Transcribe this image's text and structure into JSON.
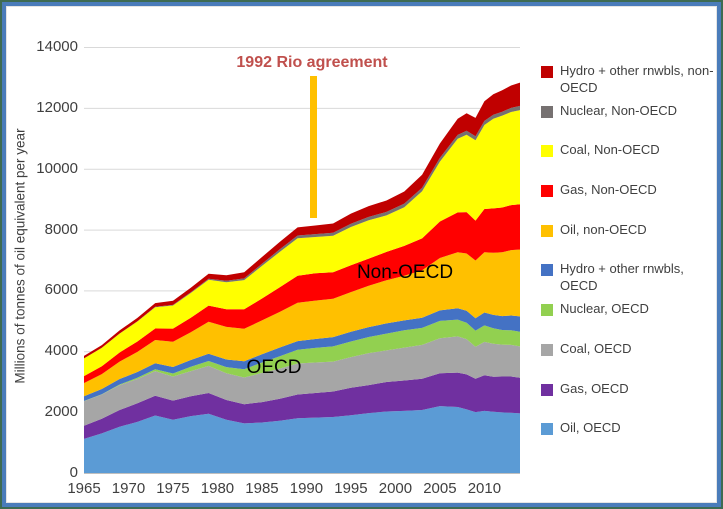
{
  "y_axis": {
    "title": "Millions of tonnes of oil equivalent per year"
  },
  "annotation": {
    "text": "1992 Rio agreement",
    "year": 1992,
    "text_color": "#C0504D",
    "line_color": "#FFC000"
  },
  "area_labels": {
    "non_oecd": "Non-OECD",
    "oecd": "OECD"
  },
  "legend": {
    "items": [
      {
        "label": "Hydro + other rnwbls, non-OECD",
        "color": "#C00000"
      },
      {
        "label": "Nuclear, Non-OECD",
        "color": "#767171"
      },
      {
        "label": "Coal, Non-OECD",
        "color": "#FFFF00"
      },
      {
        "label": "Gas, Non-OECD",
        "color": "#FF0000"
      },
      {
        "label": "Oil, non-OECD",
        "color": "#FFC000"
      },
      {
        "label": "Hydro + other rnwbls, OECD",
        "color": "#4472C4"
      },
      {
        "label": "Nuclear, OECD",
        "color": "#92D050"
      },
      {
        "label": "Coal, OECD",
        "color": "#A6A6A6"
      },
      {
        "label": "Gas, OECD",
        "color": "#7030A0"
      },
      {
        "label": "Oil, OECD",
        "color": "#5B9BD5"
      }
    ]
  },
  "chart_data": {
    "type": "area",
    "stacked": true,
    "title": "",
    "xlabel": "",
    "ylabel": "Millions of tonnes of oil equivalent per year",
    "ylim": [
      0,
      14000
    ],
    "y_ticks": [
      0,
      2000,
      4000,
      6000,
      8000,
      10000,
      12000,
      14000
    ],
    "x_ticks": [
      1965,
      1970,
      1975,
      1980,
      1985,
      1990,
      1995,
      2000,
      2005,
      2010
    ],
    "grid": "horizontal",
    "legend_position": "right",
    "x": [
      1965,
      1967,
      1969,
      1971,
      1973,
      1975,
      1977,
      1979,
      1981,
      1983,
      1985,
      1987,
      1989,
      1991,
      1993,
      1995,
      1997,
      1999,
      2001,
      2003,
      2005,
      2007,
      2008,
      2009,
      2010,
      2011,
      2012,
      2013,
      2014
    ],
    "series": [
      {
        "name": "Oil, OECD",
        "color": "#5B9BD5",
        "values": [
          1120,
          1300,
          1520,
          1680,
          1890,
          1750,
          1870,
          1950,
          1750,
          1630,
          1660,
          1720,
          1800,
          1820,
          1840,
          1900,
          1970,
          2020,
          2040,
          2070,
          2200,
          2170,
          2090,
          2000,
          2040,
          2010,
          1990,
          1980,
          1960
        ]
      },
      {
        "name": "Gas, OECD",
        "color": "#7030A0",
        "values": [
          430,
          480,
          550,
          610,
          650,
          630,
          650,
          680,
          650,
          630,
          670,
          720,
          780,
          810,
          840,
          900,
          920,
          970,
          1000,
          1030,
          1080,
          1130,
          1150,
          1100,
          1170,
          1150,
          1180,
          1190,
          1170
        ]
      },
      {
        "name": "Coal, OECD",
        "color": "#A6A6A6",
        "values": [
          810,
          800,
          820,
          800,
          810,
          790,
          830,
          890,
          880,
          880,
          960,
          990,
          1020,
          1000,
          980,
          1010,
          1050,
          1040,
          1080,
          1110,
          1150,
          1190,
          1160,
          1050,
          1100,
          1090,
          1050,
          1040,
          1030
        ]
      },
      {
        "name": "Nuclear, OECD",
        "color": "#92D050",
        "values": [
          5,
          10,
          20,
          40,
          60,
          100,
          140,
          160,
          200,
          270,
          340,
          410,
          450,
          480,
          500,
          510,
          530,
          550,
          570,
          560,
          570,
          550,
          540,
          530,
          540,
          510,
          480,
          480,
          480
        ]
      },
      {
        "name": "Hydro + other rnwbls, OECD",
        "color": "#4472C4",
        "values": [
          160,
          170,
          180,
          190,
          200,
          215,
          225,
          240,
          250,
          260,
          275,
          285,
          285,
          295,
          305,
          325,
          325,
          335,
          325,
          330,
          345,
          375,
          395,
          405,
          425,
          435,
          455,
          485,
          505
        ]
      },
      {
        "name": "Oil, non-OECD",
        "color": "#FFC000",
        "values": [
          430,
          490,
          570,
          660,
          760,
          830,
          910,
          1050,
          1070,
          1070,
          1110,
          1170,
          1260,
          1260,
          1260,
          1300,
          1360,
          1420,
          1470,
          1560,
          1720,
          1840,
          1880,
          1900,
          1980,
          2040,
          2100,
          2150,
          2200
        ]
      },
      {
        "name": "Gas, Non-OECD",
        "color": "#FF0000",
        "values": [
          230,
          260,
          300,
          340,
          380,
          430,
          480,
          530,
          580,
          640,
          720,
          810,
          890,
          900,
          870,
          880,
          890,
          930,
          980,
          1050,
          1200,
          1310,
          1360,
          1310,
          1420,
          1460,
          1470,
          1480,
          1490
        ]
      },
      {
        "name": "Coal, Non-OECD",
        "color": "#FFFF00",
        "values": [
          580,
          600,
          620,
          660,
          700,
          760,
          810,
          850,
          890,
          960,
          1070,
          1160,
          1230,
          1190,
          1200,
          1260,
          1260,
          1200,
          1270,
          1550,
          1970,
          2420,
          2540,
          2640,
          2760,
          2950,
          3020,
          3060,
          3090
        ]
      },
      {
        "name": "Nuclear, Non-OECD",
        "color": "#767171",
        "values": [
          2,
          3,
          5,
          8,
          12,
          18,
          25,
          35,
          45,
          55,
          70,
          85,
          90,
          95,
          100,
          105,
          110,
          115,
          120,
          115,
          120,
          125,
          130,
          130,
          135,
          130,
          130,
          135,
          140
        ]
      },
      {
        "name": "Hydro + other rnwbls, non-OECD",
        "color": "#C00000",
        "values": [
          80,
          90,
          100,
          110,
          120,
          135,
          150,
          165,
          185,
          205,
          225,
          245,
          265,
          285,
          305,
          335,
          355,
          375,
          395,
          425,
          475,
          535,
          575,
          605,
          645,
          675,
          705,
          735,
          765
        ]
      }
    ]
  }
}
